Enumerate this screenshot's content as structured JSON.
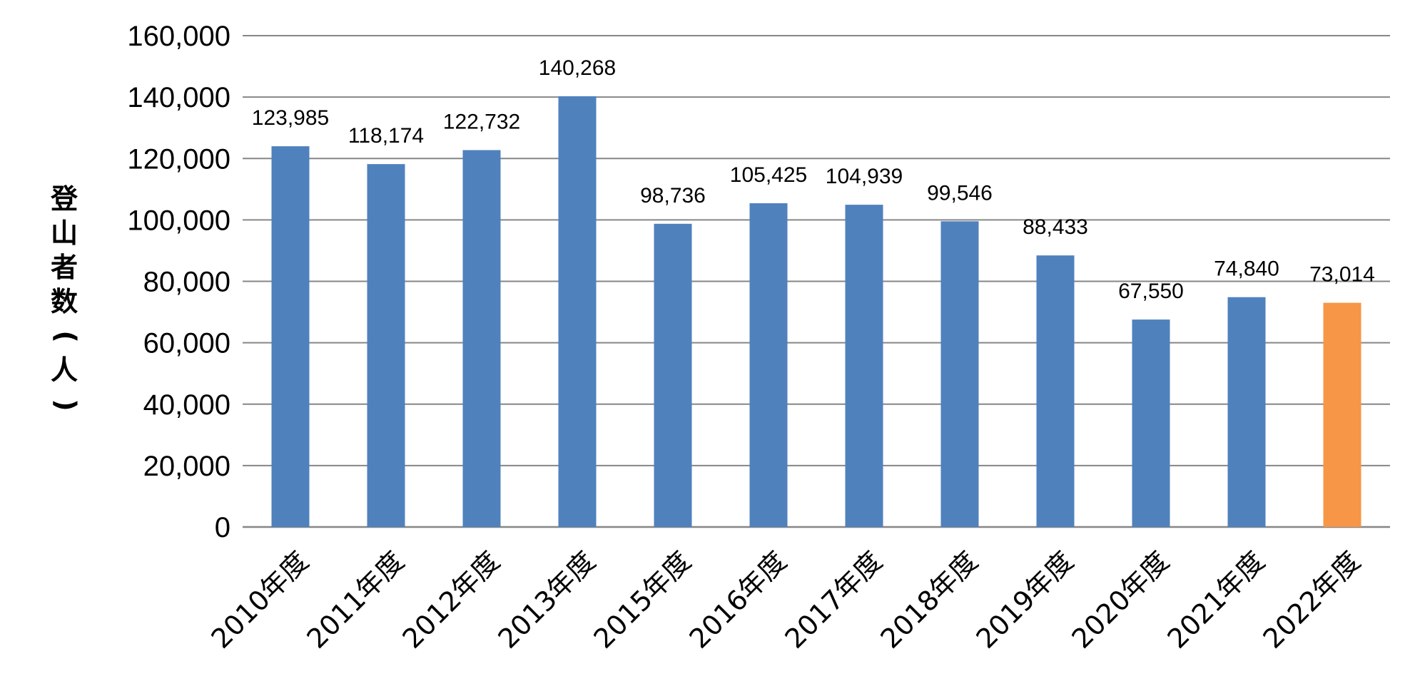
{
  "chart_data": {
    "type": "bar",
    "title": "",
    "xlabel": "",
    "ylabel": "登山者数(人)",
    "categories": [
      "2010年度",
      "2011年度",
      "2012年度",
      "2013年度",
      "2015年度",
      "2016年度",
      "2017年度",
      "2018年度",
      "2019年度",
      "2020年度",
      "2021年度",
      "2022年度"
    ],
    "values": [
      123985,
      118174,
      122732,
      140268,
      98736,
      105425,
      104939,
      99546,
      88433,
      67550,
      74840,
      73014
    ],
    "value_labels": [
      "123,985",
      "118,174",
      "122,732",
      "140,268",
      "98,736",
      "105,425",
      "104,939",
      "99,546",
      "88,433",
      "67,550",
      "74,840",
      "73,014"
    ],
    "y_ticks": [
      "0",
      "20,000",
      "40,000",
      "60,000",
      "80,000",
      "100,000",
      "120,000",
      "140,000",
      "160,000"
    ],
    "ylim": [
      0,
      160000
    ],
    "grid": true,
    "legend": "none",
    "colors": {
      "bar": "#4F81BD",
      "highlight": "#F79646",
      "grid": "#868686"
    },
    "highlight_index": 11
  }
}
